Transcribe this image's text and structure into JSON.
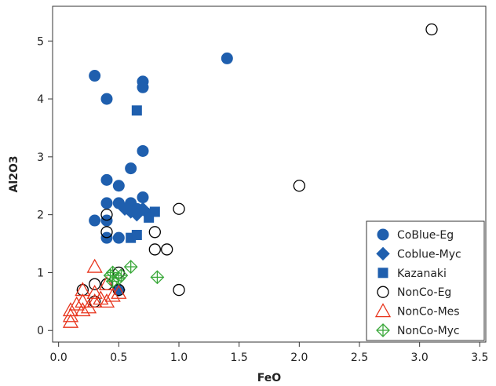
{
  "chart_data": {
    "type": "scatter",
    "title": "",
    "xlabel": "FeO",
    "ylabel": "Al2O3",
    "xlim": [
      -0.05,
      3.55
    ],
    "ylim": [
      -0.2,
      5.6
    ],
    "xticks": [
      "0.0",
      "0.5",
      "1.0",
      "1.5",
      "2.0",
      "2.5",
      "3.0",
      "3.5"
    ],
    "xtick_values": [
      0,
      0.5,
      1.0,
      1.5,
      2.0,
      2.5,
      3.0,
      3.5
    ],
    "yticks": [
      "0",
      "1",
      "2",
      "3",
      "4",
      "5"
    ],
    "ytick_values": [
      0,
      1,
      2,
      3,
      4,
      5
    ],
    "grid": false,
    "legend_position": "bottom-right",
    "series": [
      {
        "name": "CoBlue-Eg",
        "marker": "circle-filled",
        "color": "#1f5fae",
        "points": [
          [
            0.3,
            4.4
          ],
          [
            0.4,
            4.0
          ],
          [
            0.7,
            4.3
          ],
          [
            0.7,
            4.2
          ],
          [
            1.4,
            4.7
          ],
          [
            0.7,
            3.1
          ],
          [
            0.6,
            2.8
          ],
          [
            0.4,
            2.6
          ],
          [
            0.5,
            2.5
          ],
          [
            0.4,
            2.2
          ],
          [
            0.5,
            2.2
          ],
          [
            0.7,
            2.3
          ],
          [
            0.6,
            2.2
          ],
          [
            0.3,
            1.9
          ],
          [
            0.4,
            1.9
          ],
          [
            0.4,
            1.6
          ],
          [
            0.5,
            1.6
          ],
          [
            0.65,
            2.1
          ]
        ]
      },
      {
        "name": "Coblue-Myc",
        "marker": "diamond-filled",
        "color": "#1f5fae",
        "points": [
          [
            0.55,
            2.1
          ],
          [
            0.6,
            2.05
          ],
          [
            0.65,
            2.0
          ],
          [
            0.7,
            2.1
          ],
          [
            0.75,
            2.0
          ],
          [
            0.5,
            0.7
          ]
        ]
      },
      {
        "name": "Kazanaki",
        "marker": "square-filled",
        "color": "#1f5fae",
        "points": [
          [
            0.65,
            3.8
          ],
          [
            0.8,
            2.05
          ],
          [
            0.75,
            1.95
          ],
          [
            0.6,
            1.6
          ],
          [
            0.65,
            1.65
          ]
        ]
      },
      {
        "name": "NonCo-Eg",
        "marker": "circle-open",
        "color": "#000000",
        "points": [
          [
            3.1,
            5.2
          ],
          [
            2.0,
            2.5
          ],
          [
            1.0,
            2.1
          ],
          [
            0.8,
            1.7
          ],
          [
            0.8,
            1.4
          ],
          [
            0.9,
            1.4
          ],
          [
            1.0,
            0.7
          ],
          [
            0.4,
            2.0
          ],
          [
            0.4,
            1.7
          ],
          [
            0.5,
            1.0
          ],
          [
            0.3,
            0.8
          ],
          [
            0.5,
            0.7
          ],
          [
            0.2,
            0.7
          ],
          [
            0.3,
            0.5
          ],
          [
            0.4,
            0.8
          ]
        ]
      },
      {
        "name": "NonCo-Mes",
        "marker": "triangle-open",
        "color": "#e8341c",
        "points": [
          [
            0.1,
            0.15
          ],
          [
            0.1,
            0.25
          ],
          [
            0.1,
            0.35
          ],
          [
            0.15,
            0.45
          ],
          [
            0.2,
            0.35
          ],
          [
            0.2,
            0.5
          ],
          [
            0.25,
            0.4
          ],
          [
            0.3,
            1.1
          ],
          [
            0.2,
            0.7
          ],
          [
            0.3,
            0.65
          ],
          [
            0.35,
            0.55
          ],
          [
            0.4,
            0.8
          ],
          [
            0.45,
            0.6
          ],
          [
            0.5,
            0.65
          ],
          [
            0.4,
            0.5
          ],
          [
            0.3,
            0.5
          ]
        ]
      },
      {
        "name": "NonCo-Myc",
        "marker": "crossed-diamond",
        "color": "#3aa83a",
        "points": [
          [
            0.45,
            1.0
          ],
          [
            0.5,
            0.9
          ],
          [
            0.45,
            0.85
          ],
          [
            0.6,
            1.1
          ],
          [
            0.82,
            0.92
          ],
          [
            0.43,
            0.95
          ],
          [
            0.52,
            0.95
          ]
        ]
      }
    ]
  }
}
